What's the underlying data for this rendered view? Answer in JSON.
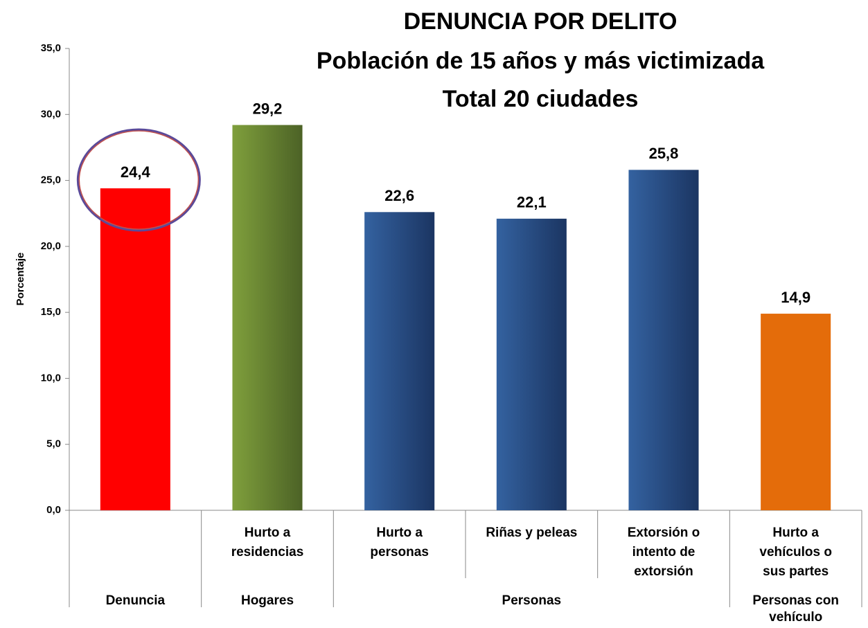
{
  "chart_data": {
    "type": "bar",
    "title": [
      "DENUNCIA POR DELITO",
      "Población de 15 años y más victimizada",
      "Total 20 ciudades"
    ],
    "y_label": "Porcentaje",
    "categories": [
      null,
      [
        "Hurto a",
        "residencias"
      ],
      [
        "Hurto a",
        "personas"
      ],
      [
        "Riñas y peleas"
      ],
      [
        "Extorsión o",
        "intento de",
        "extorsión"
      ],
      [
        "Hurto a",
        "vehículos o",
        "sus partes"
      ]
    ],
    "groups": [
      {
        "label": [
          "Denuncia"
        ],
        "count": 1
      },
      {
        "label": [
          "Hogares"
        ],
        "count": 1
      },
      {
        "label": [
          "Personas"
        ],
        "count": 3
      },
      {
        "label": [
          "Personas con",
          "vehículo"
        ],
        "count": 1
      }
    ],
    "values": [
      24.4,
      29.2,
      22.6,
      22.1,
      25.8,
      14.9
    ],
    "value_labels": [
      "24,4",
      "29,2",
      "22,6",
      "22,1",
      "25,8",
      "14,9"
    ],
    "colors": [
      [
        "#ff0000",
        "#ff0000"
      ],
      [
        "#7f9f3c",
        "#4c6226"
      ],
      [
        "#3462a0",
        "#1b3562"
      ],
      [
        "#3462a0",
        "#1b3562"
      ],
      [
        "#3462a0",
        "#1b3562"
      ],
      [
        "#e46c0a",
        "#e46c0a"
      ]
    ],
    "ylim": [
      0,
      35
    ],
    "yticks": [
      {
        "value": 0,
        "label": "0,0"
      },
      {
        "value": 5,
        "label": "5,0"
      },
      {
        "value": 10,
        "label": "10,0"
      },
      {
        "value": 15,
        "label": "15,0"
      },
      {
        "value": 20,
        "label": "20,0"
      },
      {
        "value": 25,
        "label": "25,0"
      },
      {
        "value": 30,
        "label": "30,0"
      },
      {
        "value": 35,
        "label": "35,0"
      }
    ]
  }
}
